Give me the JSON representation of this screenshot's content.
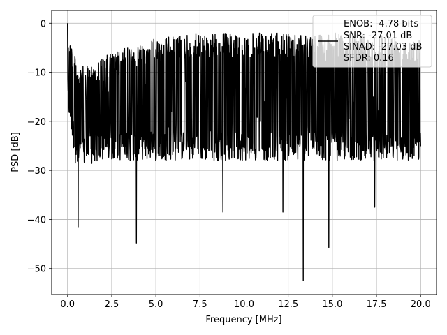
{
  "chart_data": {
    "type": "line",
    "title": "",
    "xlabel": "Frequency [MHz]",
    "ylabel": "PSD [dB]",
    "xlim": [
      -0.9,
      20.9
    ],
    "ylim": [
      -55.3,
      2.6
    ],
    "xticks": [
      0.0,
      2.5,
      5.0,
      7.5,
      10.0,
      12.5,
      15.0,
      17.5,
      20.0
    ],
    "xtick_labels": [
      "0.0",
      "2.5",
      "5.0",
      "7.5",
      "10.0",
      "12.5",
      "15.0",
      "17.5",
      "20.0"
    ],
    "yticks": [
      0,
      -10,
      -20,
      -30,
      -40,
      -50
    ],
    "ytick_labels": [
      "0",
      "−10",
      "−20",
      "−30",
      "−40",
      "−50"
    ],
    "grid": true,
    "legend_position": "top-right",
    "legend_lines": [
      "ENOB: -4.78 bits",
      "SNR: -27.01 dB",
      "SINAD: -27.03 dB",
      "SFDR: 0.16"
    ],
    "series": [
      {
        "color": "#000000",
        "style": "noisy power spectral density trace",
        "envelope": {
          "x": [
            0.0,
            0.5,
            1.0,
            2.5,
            5.0,
            7.5,
            10.0,
            12.5,
            15.0,
            17.5,
            20.0
          ],
          "upper": [
            0.0,
            -8.0,
            -9.0,
            -6.0,
            -3.0,
            -2.0,
            -2.0,
            -2.0,
            -2.0,
            -2.0,
            -3.0
          ],
          "typical_low": [
            -17.0,
            -30.0,
            -29.0,
            -28.0,
            -28.0,
            -28.0,
            -28.0,
            -28.0,
            -28.0,
            -28.0,
            -28.0
          ]
        },
        "deep_minima": [
          {
            "x": 0.6,
            "y": -41.5
          },
          {
            "x": 3.9,
            "y": -44.8
          },
          {
            "x": 8.8,
            "y": -38.5
          },
          {
            "x": 12.2,
            "y": -38.5
          },
          {
            "x": 13.35,
            "y": -52.5
          },
          {
            "x": 14.8,
            "y": -45.7
          },
          {
            "x": 17.4,
            "y": -37.5
          }
        ]
      }
    ]
  }
}
